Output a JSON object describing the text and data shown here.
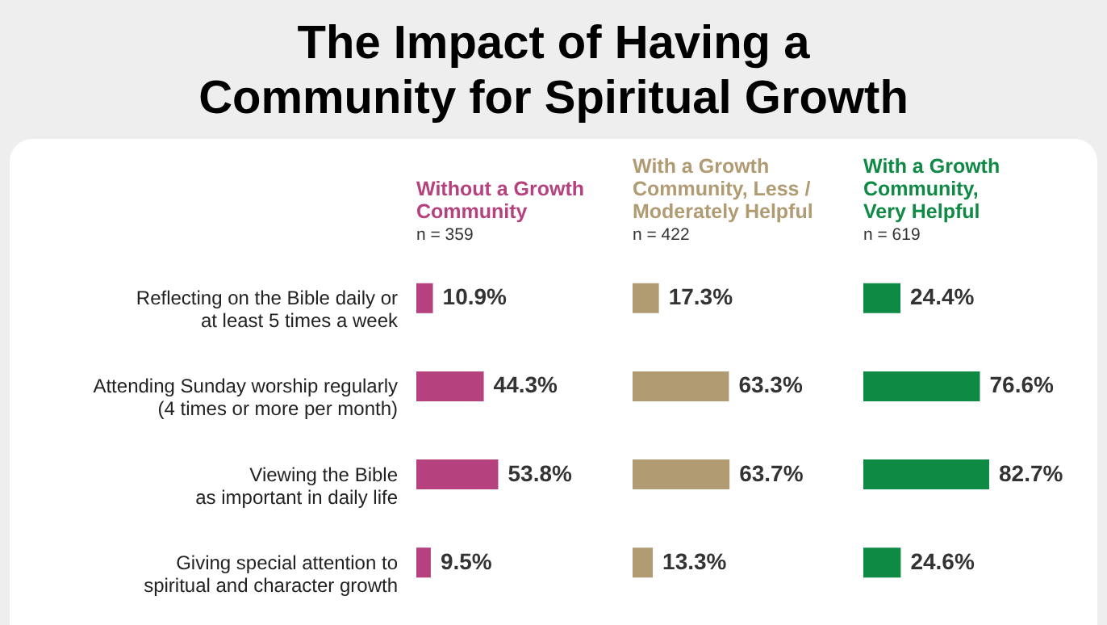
{
  "chart_data": [
    {
      "type": "bar",
      "orientation": "horizontal",
      "title": "The Impact of Having a\nCommunity for Spiritual Growth",
      "categories": [
        "Reflecting on the Bible daily or\nat least 5 times a week",
        "Attending Sunday worship regularly\n(4 times or more per month)",
        "Viewing the Bible\nas important in daily life",
        "Giving special attention to\nspiritual and character growth"
      ],
      "series": [
        {
          "name": "Without a Growth\nCommunity",
          "color": "#b5427f",
          "values": [
            10.9,
            44.3,
            53.8,
            9.5
          ],
          "value_labels": [
            "10.9%",
            "44.3%",
            "53.8%",
            "9.5%"
          ]
        }
      ],
      "annotations": [
        "n = 359"
      ],
      "tick_labels": "y"
    },
    {
      "type": "bar",
      "orientation": "horizontal",
      "categories": [
        null,
        null,
        null,
        null
      ],
      "series": [
        {
          "name": "With a Growth\nCommunity, Less /\nModerately Helpful",
          "color": "#b09b72",
          "values": [
            17.3,
            63.3,
            63.7,
            13.3
          ],
          "value_labels": [
            "17.3%",
            "63.3%",
            "63.7%",
            "13.3%"
          ]
        }
      ],
      "annotations": [
        "n = 422"
      ],
      "tick_labels": false
    },
    {
      "type": "bar",
      "orientation": "horizontal",
      "categories": [
        null,
        null,
        null,
        null
      ],
      "series": [
        {
          "name": "With a Growth\nCommunity,\nVery Helpful",
          "color": "#0f8a45",
          "values": [
            24.4,
            76.6,
            82.7,
            24.6
          ],
          "value_labels": [
            "24.4%",
            "76.6%",
            "82.7%",
            "24.6%"
          ]
        }
      ],
      "annotations": [
        "n = 619"
      ],
      "tick_labels": false
    }
  ]
}
